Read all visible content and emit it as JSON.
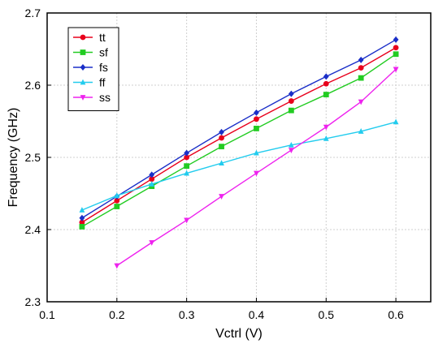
{
  "chart_data": {
    "type": "line",
    "xlabel": "Vctrl (V)",
    "ylabel": "Frequency (GHz)",
    "xlim": [
      0.1,
      0.65
    ],
    "ylim": [
      2.3,
      2.7
    ],
    "xticks": [
      0.1,
      0.2,
      0.3,
      0.4,
      0.5,
      0.6
    ],
    "yticks": [
      2.3,
      2.4,
      2.5,
      2.6,
      2.7
    ],
    "xtick_labels": [
      "0.1",
      "0.2",
      "0.3",
      "0.4",
      "0.5",
      "0.6"
    ],
    "ytick_labels": [
      "2.3",
      "2.4",
      "2.5",
      "2.6",
      "2.7"
    ],
    "grid": true,
    "legend_position": "top-left",
    "series": [
      {
        "name": "tt",
        "color": "#e8001c",
        "marker": "circle",
        "x": [
          0.15,
          0.2,
          0.25,
          0.3,
          0.35,
          0.4,
          0.45,
          0.5,
          0.55,
          0.6
        ],
        "y": [
          2.41,
          2.44,
          2.47,
          2.5,
          2.527,
          2.553,
          2.578,
          2.602,
          2.624,
          2.652
        ]
      },
      {
        "name": "sf",
        "color": "#22cc22",
        "marker": "square",
        "x": [
          0.15,
          0.2,
          0.25,
          0.3,
          0.35,
          0.4,
          0.45,
          0.5,
          0.55,
          0.6
        ],
        "y": [
          2.404,
          2.432,
          2.46,
          2.488,
          2.515,
          2.54,
          2.565,
          2.587,
          2.61,
          2.643
        ]
      },
      {
        "name": "fs",
        "color": "#1a2ec8",
        "marker": "diamond",
        "x": [
          0.15,
          0.2,
          0.25,
          0.3,
          0.35,
          0.4,
          0.45,
          0.5,
          0.55,
          0.6
        ],
        "y": [
          2.416,
          2.446,
          2.476,
          2.506,
          2.535,
          2.562,
          2.588,
          2.612,
          2.635,
          2.663
        ]
      },
      {
        "name": "ff",
        "color": "#22ccee",
        "marker": "triangle-up",
        "x": [
          0.15,
          0.2,
          0.25,
          0.3,
          0.35,
          0.4,
          0.45,
          0.5,
          0.55,
          0.6
        ],
        "y": [
          2.427,
          2.447,
          2.463,
          2.478,
          2.492,
          2.506,
          2.517,
          2.526,
          2.536,
          2.549
        ]
      },
      {
        "name": "ss",
        "color": "#ee22ee",
        "marker": "triangle-down",
        "x": [
          0.2,
          0.25,
          0.3,
          0.35,
          0.4,
          0.45,
          0.5,
          0.55,
          0.6
        ],
        "y": [
          2.35,
          2.382,
          2.413,
          2.446,
          2.478,
          2.51,
          2.542,
          2.577,
          2.622
        ]
      }
    ]
  }
}
